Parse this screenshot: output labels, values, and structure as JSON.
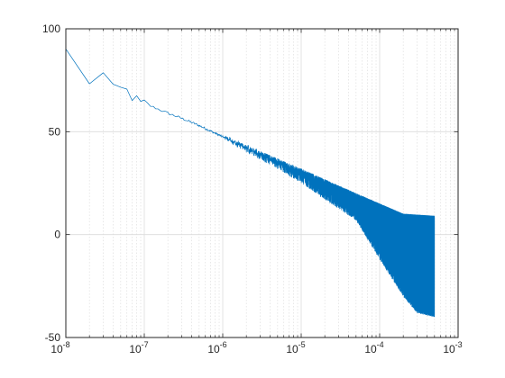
{
  "chart_data": {
    "type": "line",
    "title": "",
    "xlabel": "",
    "ylabel": "",
    "xscale": "log",
    "xlim": [
      1e-08,
      0.001
    ],
    "ylim": [
      -50,
      100
    ],
    "grid": {
      "major": true,
      "minor_x": true
    },
    "x_ticks": [
      {
        "value": 1e-08,
        "base": "10",
        "exp": "-8"
      },
      {
        "value": 1e-07,
        "base": "10",
        "exp": "-7"
      },
      {
        "value": 1e-06,
        "base": "10",
        "exp": "-6"
      },
      {
        "value": 1e-05,
        "base": "10",
        "exp": "-5"
      },
      {
        "value": 0.0001,
        "base": "10",
        "exp": "-4"
      },
      {
        "value": 0.001,
        "base": "10",
        "exp": "-3"
      }
    ],
    "y_ticks": [
      {
        "value": 100,
        "label": "100"
      },
      {
        "value": 50,
        "label": "50"
      },
      {
        "value": 0,
        "label": "0"
      },
      {
        "value": -50,
        "label": "-50"
      }
    ],
    "series": [
      {
        "color": "#0072BD",
        "x_step": 1e-08,
        "x_end": 0.0005,
        "trend_points": [
          [
            1e-08,
            90
          ],
          [
            2e-08,
            73.5
          ],
          [
            3e-08,
            78.5
          ],
          [
            4e-08,
            72.5
          ],
          [
            6e-08,
            70.5
          ],
          [
            7e-08,
            65.5
          ],
          [
            8e-08,
            67
          ],
          [
            9e-08,
            64.5
          ],
          [
            1e-07,
            65
          ],
          [
            1.2e-07,
            62.5
          ],
          [
            1.5e-07,
            61
          ],
          [
            2e-07,
            59
          ],
          [
            3e-07,
            56.5
          ],
          [
            5e-07,
            53
          ],
          [
            1e-06,
            47.5
          ],
          [
            2e-06,
            42
          ],
          [
            5e-06,
            35
          ],
          [
            1e-05,
            29.5
          ],
          [
            2e-05,
            24
          ],
          [
            5e-05,
            17
          ],
          [
            0.0001,
            12
          ],
          [
            0.0002,
            8
          ],
          [
            0.0005,
            4
          ]
        ],
        "lower_envelope_points": [
          [
            1e-06,
            46
          ],
          [
            5e-06,
            32
          ],
          [
            1e-05,
            25
          ],
          [
            2e-05,
            17
          ],
          [
            5e-05,
            7
          ],
          [
            0.0001,
            -12
          ],
          [
            0.0002,
            -30
          ],
          [
            0.0003,
            -38
          ],
          [
            0.0005,
            -40
          ]
        ],
        "upper_envelope_points": [
          [
            1e-06,
            49
          ],
          [
            5e-06,
            37
          ],
          [
            1e-05,
            32
          ],
          [
            5e-05,
            20
          ],
          [
            0.0001,
            15
          ],
          [
            0.0002,
            10
          ],
          [
            0.0005,
            9
          ]
        ]
      }
    ]
  }
}
